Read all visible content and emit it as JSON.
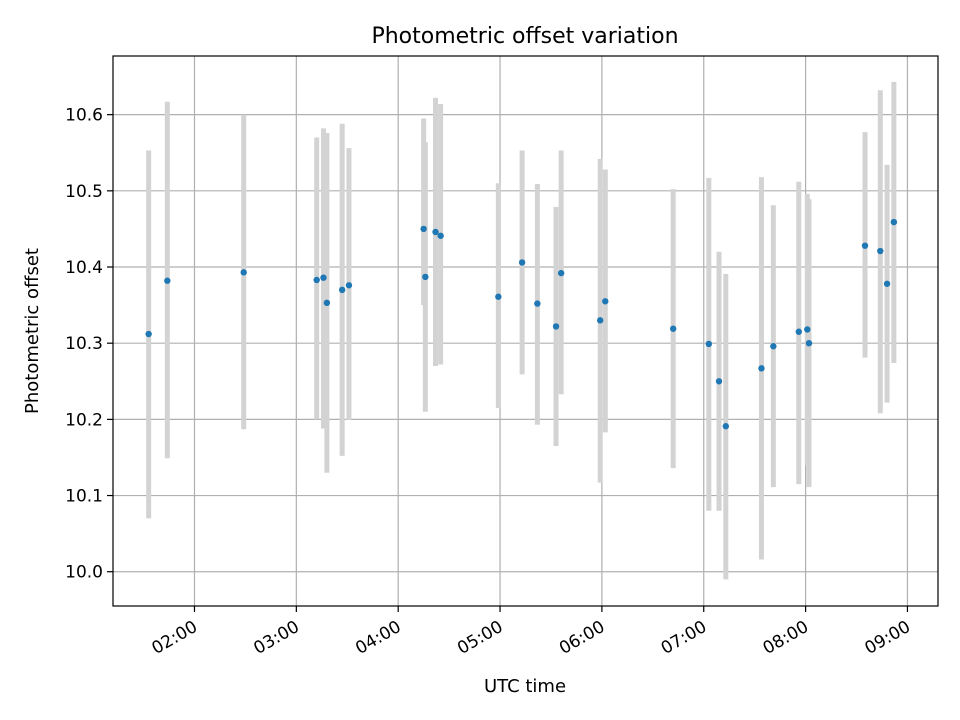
{
  "chart_data": {
    "type": "scatter",
    "title": "Photometric offset variation",
    "xlabel": "UTC time",
    "ylabel": "Photometric offset",
    "xlim": [
      "01:12",
      "09:18"
    ],
    "ylim": [
      9.955,
      10.677
    ],
    "grid": true,
    "x_ticks": [
      "02:00",
      "03:00",
      "04:00",
      "05:00",
      "06:00",
      "07:00",
      "08:00",
      "09:00"
    ],
    "y_ticks": [
      10.0,
      10.1,
      10.2,
      10.3,
      10.4,
      10.5,
      10.6
    ],
    "colors": {
      "marker": "#1f77b4",
      "error_bar": "#d3d3d3",
      "grid": "#b0b0b0"
    },
    "points": [
      {
        "time": "01:33",
        "y": 10.312,
        "low": 10.07,
        "high": 10.553
      },
      {
        "time": "01:44",
        "y": 10.382,
        "low": 10.149,
        "high": 10.617
      },
      {
        "time": "02:29",
        "y": 10.393,
        "low": 10.187,
        "high": 10.6
      },
      {
        "time": "03:12",
        "y": 10.383,
        "low": 10.2,
        "high": 10.57
      },
      {
        "time": "03:16",
        "y": 10.386,
        "low": 10.188,
        "high": 10.582
      },
      {
        "time": "03:18",
        "y": 10.353,
        "low": 10.13,
        "high": 10.576
      },
      {
        "time": "03:27",
        "y": 10.37,
        "low": 10.152,
        "high": 10.588
      },
      {
        "time": "03:31",
        "y": 10.376,
        "low": 10.199,
        "high": 10.556
      },
      {
        "time": "04:15",
        "y": 10.45,
        "low": 10.35,
        "high": 10.595
      },
      {
        "time": "04:16",
        "y": 10.387,
        "low": 10.21,
        "high": 10.564
      },
      {
        "time": "04:22",
        "y": 10.446,
        "low": 10.27,
        "high": 10.622
      },
      {
        "time": "04:25",
        "y": 10.441,
        "low": 10.272,
        "high": 10.614
      },
      {
        "time": "04:59",
        "y": 10.361,
        "low": 10.215,
        "high": 10.51
      },
      {
        "time": "05:13",
        "y": 10.406,
        "low": 10.259,
        "high": 10.553
      },
      {
        "time": "05:22",
        "y": 10.352,
        "low": 10.193,
        "high": 10.509
      },
      {
        "time": "05:33",
        "y": 10.322,
        "low": 10.165,
        "high": 10.479
      },
      {
        "time": "05:36",
        "y": 10.392,
        "low": 10.233,
        "high": 10.553
      },
      {
        "time": "05:59",
        "y": 10.33,
        "low": 10.117,
        "high": 10.542
      },
      {
        "time": "06:02",
        "y": 10.355,
        "low": 10.183,
        "high": 10.528
      },
      {
        "time": "06:42",
        "y": 10.319,
        "low": 10.136,
        "high": 10.502
      },
      {
        "time": "07:03",
        "y": 10.299,
        "low": 10.08,
        "high": 10.517
      },
      {
        "time": "07:09",
        "y": 10.25,
        "low": 10.08,
        "high": 10.42
      },
      {
        "time": "07:13",
        "y": 10.191,
        "low": 9.99,
        "high": 10.391
      },
      {
        "time": "07:34",
        "y": 10.267,
        "low": 10.016,
        "high": 10.518
      },
      {
        "time": "07:41",
        "y": 10.296,
        "low": 10.111,
        "high": 10.481
      },
      {
        "time": "07:56",
        "y": 10.315,
        "low": 10.115,
        "high": 10.512
      },
      {
        "time": "08:01",
        "y": 10.318,
        "low": 10.14,
        "high": 10.496
      },
      {
        "time": "08:02",
        "y": 10.3,
        "low": 10.111,
        "high": 10.489
      },
      {
        "time": "08:35",
        "y": 10.428,
        "low": 10.281,
        "high": 10.577
      },
      {
        "time": "08:44",
        "y": 10.421,
        "low": 10.208,
        "high": 10.632
      },
      {
        "time": "08:48",
        "y": 10.378,
        "low": 10.222,
        "high": 10.534
      },
      {
        "time": "08:52",
        "y": 10.459,
        "low": 10.274,
        "high": 10.643
      }
    ]
  }
}
